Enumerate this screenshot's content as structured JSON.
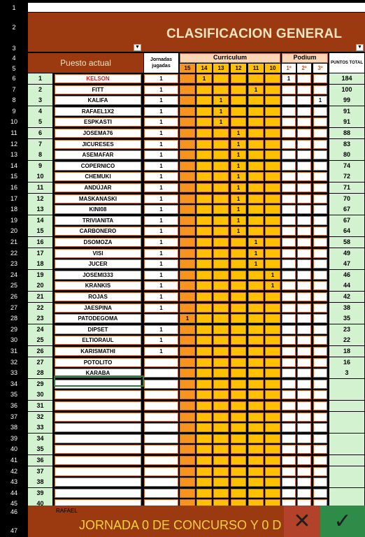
{
  "sheet": {
    "title": "CLASIFICACION GENERAL",
    "headers": {
      "puesto": "Puesto actual",
      "jornadas": "Jornadas jugadas",
      "curriculum": "Curriculum",
      "podium": "Podium",
      "puntos": "PUNTOS TOTAL",
      "curriculum_cols": [
        "15",
        "14",
        "13",
        "12",
        "11",
        "10"
      ],
      "podium_cols": [
        "1º",
        "2º",
        "3º"
      ]
    },
    "row_headers": [
      "1",
      "2",
      "3",
      "4",
      "5",
      "6",
      "7",
      "8",
      "9",
      "10",
      "11",
      "12",
      "13",
      "14",
      "15",
      "16",
      "17",
      "18",
      "19",
      "20",
      "21",
      "22",
      "23",
      "24",
      "25",
      "26",
      "27",
      "28",
      "29",
      "30",
      "31",
      "32",
      "33",
      "34",
      "35",
      "36",
      "37",
      "38",
      "39",
      "40",
      "41",
      "42",
      "43",
      "44",
      "45",
      "46",
      "47"
    ],
    "rows": [
      {
        "pos": "1",
        "name": "KELSON",
        "jor": "1",
        "cur": [
          "",
          "1",
          "",
          "",
          "",
          ""
        ],
        "pod": [
          "1",
          "",
          ""
        ],
        "pts": "184",
        "red": true
      },
      {
        "pos": "2",
        "name": "FITT",
        "jor": "1",
        "cur": [
          "",
          "",
          "",
          "",
          "1",
          ""
        ],
        "pod": [
          "",
          "",
          ""
        ],
        "pts": "100"
      },
      {
        "pos": "3",
        "name": "KALIFA",
        "jor": "1",
        "cur": [
          "",
          "",
          "1",
          "",
          "",
          ""
        ],
        "pod": [
          "",
          "",
          "1"
        ],
        "pts": "99"
      },
      {
        "pos": "4",
        "name": "RAFAEL1X2",
        "jor": "1",
        "cur": [
          "",
          "",
          "1",
          "",
          "",
          ""
        ],
        "pod": [
          "",
          "",
          ""
        ],
        "pts": "91"
      },
      {
        "pos": "5",
        "name": "ESPKASTI",
        "jor": "1",
        "cur": [
          "",
          "",
          "1",
          "",
          "",
          ""
        ],
        "pod": [
          "",
          "",
          ""
        ],
        "pts": "91"
      },
      {
        "pos": "6",
        "name": "JOSEMA76",
        "jor": "1",
        "cur": [
          "",
          "",
          "",
          "1",
          "",
          ""
        ],
        "pod": [
          "",
          "",
          ""
        ],
        "pts": "88"
      },
      {
        "pos": "7",
        "name": "JICURESES",
        "jor": "1",
        "cur": [
          "",
          "",
          "",
          "1",
          "",
          ""
        ],
        "pod": [
          "",
          "",
          ""
        ],
        "pts": "83"
      },
      {
        "pos": "8",
        "name": "ASEMAFAR",
        "jor": "1",
        "cur": [
          "",
          "",
          "",
          "1",
          "",
          ""
        ],
        "pod": [
          "",
          "",
          ""
        ],
        "pts": "80"
      },
      {
        "pos": "9",
        "name": "COPERNICO",
        "jor": "1",
        "cur": [
          "",
          "",
          "",
          "1",
          "",
          ""
        ],
        "pod": [
          "",
          "",
          ""
        ],
        "pts": "74"
      },
      {
        "pos": "10",
        "name": "CHEMUKI",
        "jor": "1",
        "cur": [
          "",
          "",
          "",
          "1",
          "",
          ""
        ],
        "pod": [
          "",
          "",
          ""
        ],
        "pts": "72"
      },
      {
        "pos": "11",
        "name": "ANDÚJAR",
        "jor": "1",
        "cur": [
          "",
          "",
          "",
          "1",
          "",
          ""
        ],
        "pod": [
          "",
          "",
          ""
        ],
        "pts": "71"
      },
      {
        "pos": "12",
        "name": "MASKANASKI",
        "jor": "1",
        "cur": [
          "",
          "",
          "",
          "1",
          "",
          ""
        ],
        "pod": [
          "",
          "",
          ""
        ],
        "pts": "70"
      },
      {
        "pos": "13",
        "name": "KINI08",
        "jor": "1",
        "cur": [
          "",
          "",
          "",
          "1",
          "",
          ""
        ],
        "pod": [
          "",
          "",
          ""
        ],
        "pts": "67"
      },
      {
        "pos": "14",
        "name": "TRIVIANITA",
        "jor": "1",
        "cur": [
          "",
          "",
          "",
          "1",
          "",
          ""
        ],
        "pod": [
          "",
          "",
          ""
        ],
        "pts": "67"
      },
      {
        "pos": "15",
        "name": "CARBONERO",
        "jor": "1",
        "cur": [
          "",
          "",
          "",
          "1",
          "",
          ""
        ],
        "pod": [
          "",
          "",
          ""
        ],
        "pts": "64"
      },
      {
        "pos": "16",
        "name": "DSOMOZA",
        "jor": "1",
        "cur": [
          "",
          "",
          "",
          "",
          "1",
          ""
        ],
        "pod": [
          "",
          "",
          ""
        ],
        "pts": "58"
      },
      {
        "pos": "17",
        "name": "VISI",
        "jor": "1",
        "cur": [
          "",
          "",
          "",
          "",
          "1",
          ""
        ],
        "pod": [
          "",
          "",
          ""
        ],
        "pts": "49"
      },
      {
        "pos": "18",
        "name": "JUCER",
        "jor": "1",
        "cur": [
          "",
          "",
          "",
          "",
          "1",
          ""
        ],
        "pod": [
          "",
          "",
          ""
        ],
        "pts": "47"
      },
      {
        "pos": "19",
        "name": "JOSEMI333",
        "jor": "1",
        "cur": [
          "",
          "",
          "",
          "",
          "",
          "1"
        ],
        "pod": [
          "",
          "",
          ""
        ],
        "pts": "46"
      },
      {
        "pos": "20",
        "name": "KRANKIS",
        "jor": "1",
        "cur": [
          "",
          "",
          "",
          "",
          "",
          "1"
        ],
        "pod": [
          "",
          "",
          ""
        ],
        "pts": "44"
      },
      {
        "pos": "21",
        "name": "ROJAS",
        "jor": "1",
        "cur": [
          "",
          "",
          "",
          "",
          "",
          ""
        ],
        "pod": [
          "",
          "",
          ""
        ],
        "pts": "42"
      },
      {
        "pos": "22",
        "name": "JAESPINA",
        "jor": "1",
        "cur": [
          "",
          "",
          "",
          "",
          "",
          ""
        ],
        "pod": [
          "",
          "",
          ""
        ],
        "pts": "38"
      },
      {
        "pos": "23",
        "name": "PATODEGOMA",
        "jor": "",
        "cur": [
          "1",
          "",
          "",
          "",
          "",
          ""
        ],
        "pod": [
          "",
          "",
          ""
        ],
        "pts": "35"
      },
      {
        "pos": "24",
        "name": "DIPSET",
        "jor": "1",
        "cur": [
          "",
          "",
          "",
          "",
          "",
          ""
        ],
        "pod": [
          "",
          "",
          ""
        ],
        "pts": "23"
      },
      {
        "pos": "25",
        "name": "ELTIORAUL",
        "jor": "1",
        "cur": [
          "",
          "",
          "",
          "",
          "",
          ""
        ],
        "pod": [
          "",
          "",
          ""
        ],
        "pts": "22"
      },
      {
        "pos": "26",
        "name": "KARISMATHI",
        "jor": "1",
        "cur": [
          "",
          "",
          "",
          "",
          "",
          ""
        ],
        "pod": [
          "",
          "",
          ""
        ],
        "pts": "18"
      },
      {
        "pos": "27",
        "name": "POTOLITO",
        "jor": "",
        "cur": [
          "",
          "",
          "",
          "",
          "",
          ""
        ],
        "pod": [
          "",
          "",
          ""
        ],
        "pts": "16"
      },
      {
        "pos": "28",
        "name": "KARABA",
        "jor": "",
        "cur": [
          "",
          "",
          "",
          "",
          "",
          ""
        ],
        "pod": [
          "",
          "",
          ""
        ],
        "pts": "3"
      },
      {
        "pos": "29",
        "name": "",
        "jor": "",
        "cur": [
          "",
          "",
          "",
          "",
          "",
          ""
        ],
        "pod": [
          "",
          "",
          ""
        ],
        "pts": ""
      },
      {
        "pos": "30",
        "name": "",
        "jor": "",
        "cur": [
          "",
          "",
          "",
          "",
          "",
          ""
        ],
        "pod": [
          "",
          "",
          ""
        ],
        "pts": ""
      },
      {
        "pos": "31",
        "name": "",
        "jor": "",
        "cur": [
          "",
          "",
          "",
          "",
          "",
          ""
        ],
        "pod": [
          "",
          "",
          ""
        ],
        "pts": ""
      },
      {
        "pos": "32",
        "name": "",
        "jor": "",
        "cur": [
          "",
          "",
          "",
          "",
          "",
          ""
        ],
        "pod": [
          "",
          "",
          ""
        ],
        "pts": ""
      },
      {
        "pos": "33",
        "name": "",
        "jor": "",
        "cur": [
          "",
          "",
          "",
          "",
          "",
          ""
        ],
        "pod": [
          "",
          "",
          ""
        ],
        "pts": ""
      },
      {
        "pos": "34",
        "name": "",
        "jor": "",
        "cur": [
          "",
          "",
          "",
          "",
          "",
          ""
        ],
        "pod": [
          "",
          "",
          ""
        ],
        "pts": ""
      },
      {
        "pos": "35",
        "name": "",
        "jor": "",
        "cur": [
          "",
          "",
          "",
          "",
          "",
          ""
        ],
        "pod": [
          "",
          "",
          ""
        ],
        "pts": ""
      },
      {
        "pos": "36",
        "name": "",
        "jor": "",
        "cur": [
          "",
          "",
          "",
          "",
          "",
          ""
        ],
        "pod": [
          "",
          "",
          ""
        ],
        "pts": ""
      },
      {
        "pos": "37",
        "name": "",
        "jor": "",
        "cur": [
          "",
          "",
          "",
          "",
          "",
          ""
        ],
        "pod": [
          "",
          "",
          ""
        ],
        "pts": ""
      },
      {
        "pos": "38",
        "name": "",
        "jor": "",
        "cur": [
          "",
          "",
          "",
          "",
          "",
          ""
        ],
        "pod": [
          "",
          "",
          ""
        ],
        "pts": ""
      },
      {
        "pos": "39",
        "name": "",
        "jor": "",
        "cur": [
          "",
          "",
          "",
          "",
          "",
          ""
        ],
        "pod": [
          "",
          "",
          ""
        ],
        "pts": ""
      },
      {
        "pos": "40",
        "name": "",
        "jor": "",
        "cur": [
          "",
          "",
          "",
          "",
          "",
          ""
        ],
        "pod": [
          "",
          "",
          ""
        ],
        "pts": ""
      }
    ],
    "footer": {
      "name": "RAFAEL",
      "text": "JORNADA 0 DE CONCURSO Y 0 D",
      "cancel": "✕",
      "confirm": "✓"
    }
  },
  "colors": {
    "brand": "#9b3a10",
    "green": "#d3f3d0",
    "title_text": "#f4e6c0",
    "footer_text": "#f5d23b",
    "cur_col_15": "#f7941d",
    "cur_col_other": "#ffc000"
  }
}
